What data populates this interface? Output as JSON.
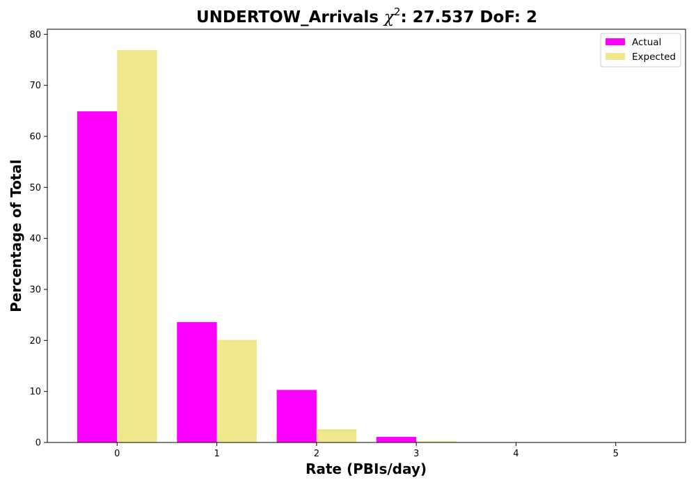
{
  "chart_data": {
    "type": "bar",
    "title": {
      "prefix": "UNDERTOW_Arrivals ",
      "chi_symbol": "χ",
      "chi_exponent": "2",
      "suffix": ": 27.537 DoF: 2"
    },
    "xlabel": "Rate (PBIs/day)",
    "ylabel": "Percentage of Total",
    "categories": [
      "0",
      "1",
      "2",
      "3",
      "4",
      "5"
    ],
    "x": [
      0,
      1,
      2,
      3,
      4,
      5
    ],
    "series": [
      {
        "name": "Actual",
        "color": "#ff00ff",
        "values": [
          64.9,
          23.6,
          10.3,
          1.1,
          0,
          0
        ]
      },
      {
        "name": "Expected",
        "color": "#f0e68c",
        "values": [
          76.9,
          20.1,
          2.6,
          0.25,
          0.015,
          0
        ]
      }
    ],
    "ylim": [
      0,
      81
    ],
    "xlim": [
      -0.7,
      5.7
    ],
    "yticks": [
      0,
      10,
      20,
      30,
      40,
      50,
      60,
      70,
      80
    ],
    "bar_width": 0.4,
    "grid": false,
    "legend_position": "top-right"
  }
}
